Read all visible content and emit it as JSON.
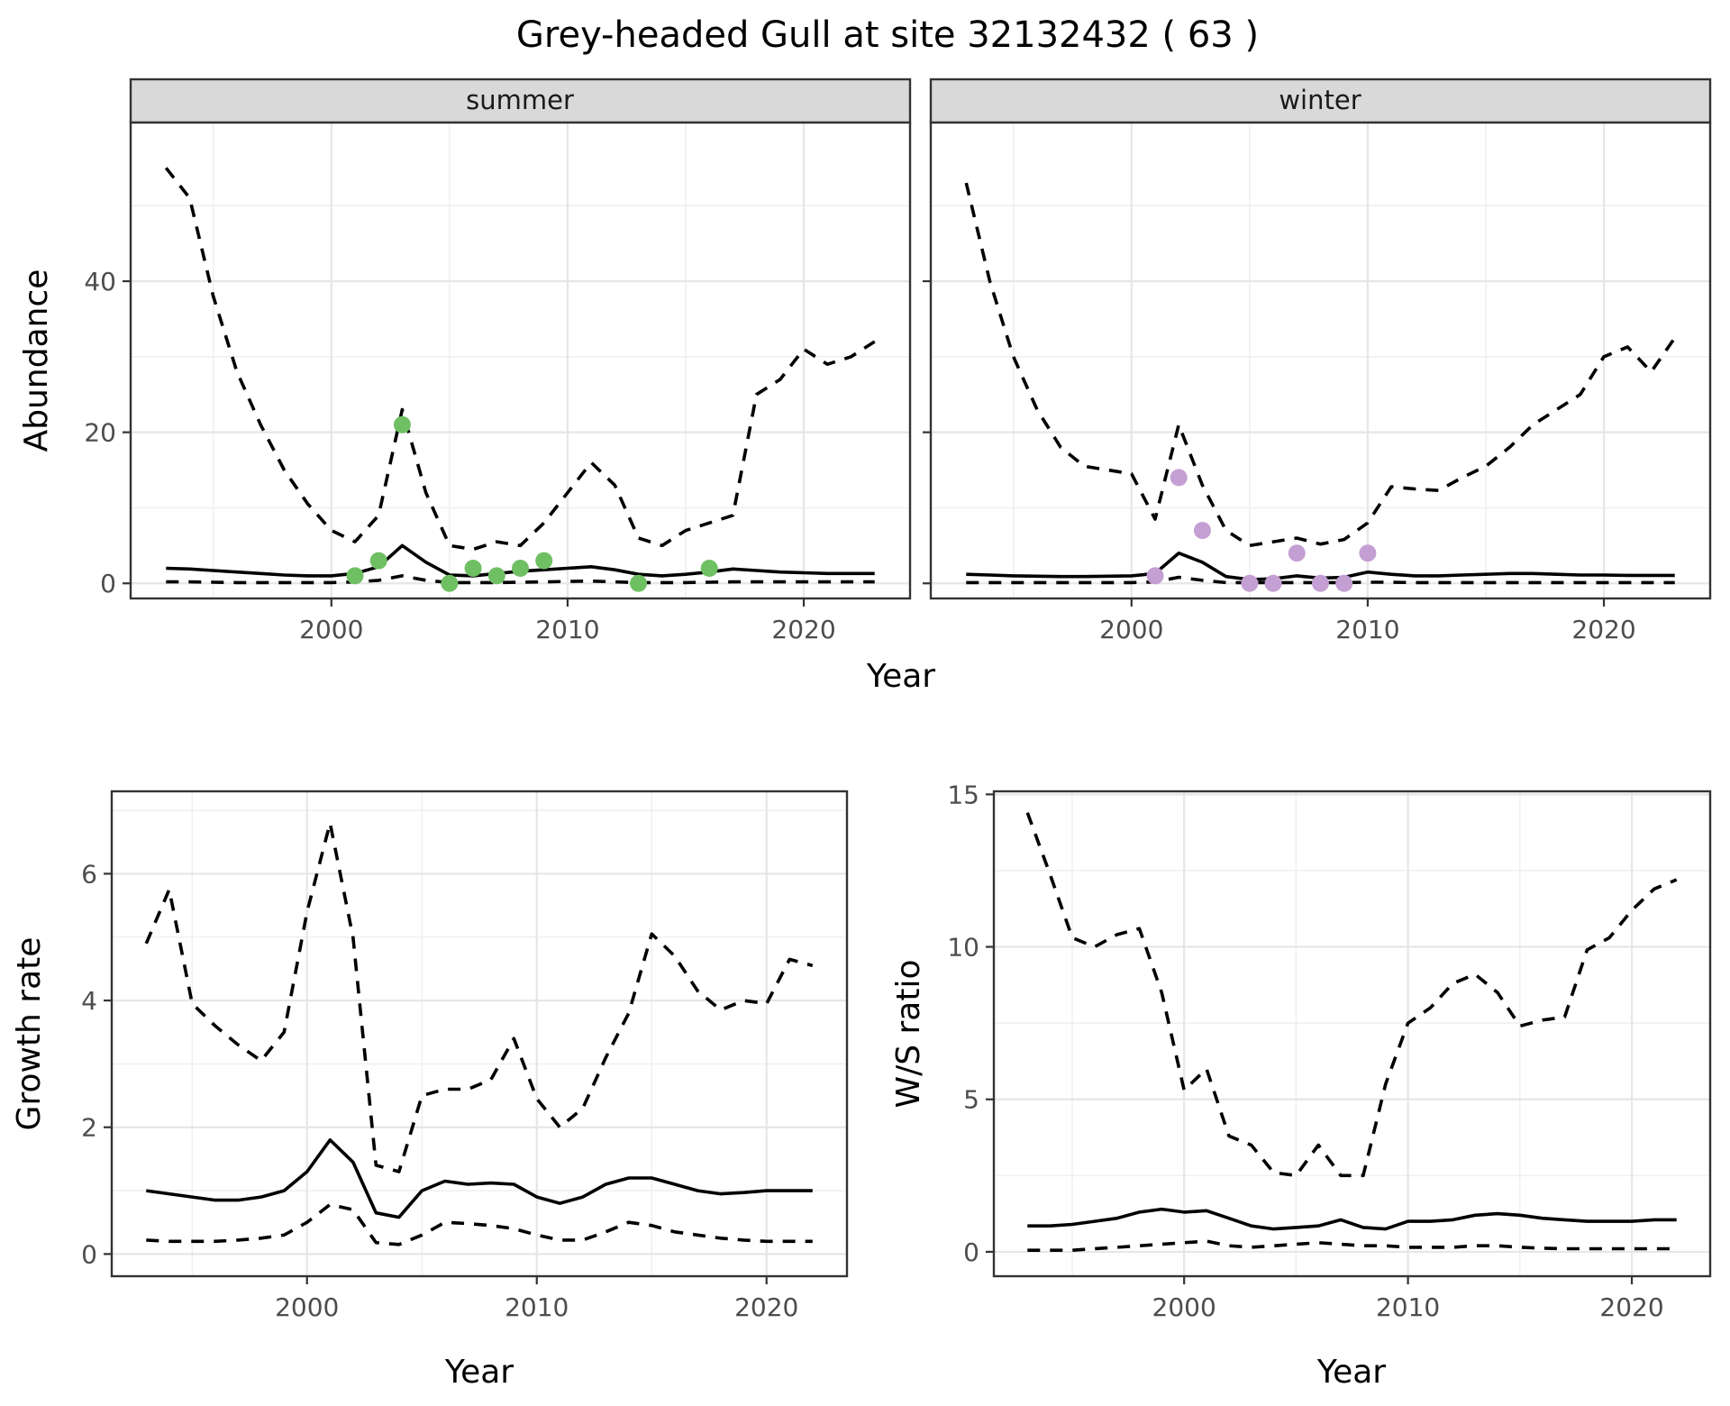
{
  "title": "Grey-headed Gull at site 32132432 ( 63 )",
  "colors": {
    "background": "#FFFFFF",
    "panel_background": "#FFFFFF",
    "strip_background": "#D9D9D9",
    "panel_border": "#333333",
    "grid_major": "#E6E6E6",
    "grid_minor": "#F0F0F0",
    "line": "#000000",
    "tick_text": "#4D4D4D",
    "summer_point": "#6FBF63",
    "winter_point": "#C49FD3"
  },
  "chart_data": [
    {
      "type": "line",
      "facet": "summer",
      "xlabel": "Year",
      "ylabel": "Abundance",
      "xlim": [
        1991.5,
        2024.5
      ],
      "ylim": [
        -2,
        61
      ],
      "xticks": [
        2000,
        2010,
        2020
      ],
      "xticks_minor": [
        1995,
        2005,
        2015
      ],
      "yticks": [
        0,
        20,
        40
      ],
      "yticks_minor": [
        10,
        30,
        50
      ],
      "grid": true,
      "legend": "none",
      "x": [
        1993,
        1994,
        1995,
        1996,
        1997,
        1998,
        1999,
        2000,
        2001,
        2002,
        2003,
        2004,
        2005,
        2006,
        2007,
        2008,
        2009,
        2010,
        2011,
        2012,
        2013,
        2014,
        2015,
        2016,
        2017,
        2018,
        2019,
        2020,
        2021,
        2022,
        2023
      ],
      "series": [
        {
          "name": "upper_ci",
          "style": "dashed",
          "values": [
            55,
            51,
            38,
            28,
            21,
            15,
            10.5,
            7,
            5.5,
            9,
            23,
            12,
            5,
            4.5,
            5.5,
            5,
            8,
            12,
            16,
            13,
            6,
            5,
            7,
            8,
            9,
            25,
            27,
            31,
            29,
            30,
            32
          ]
        },
        {
          "name": "estimate",
          "style": "solid",
          "values": [
            2,
            1.9,
            1.7,
            1.5,
            1.3,
            1.1,
            1,
            1,
            1.3,
            2.2,
            5,
            2.8,
            1.1,
            1,
            1.3,
            1.6,
            1.8,
            2,
            2.2,
            1.8,
            1.2,
            1,
            1.2,
            1.5,
            1.9,
            1.7,
            1.5,
            1.4,
            1.3,
            1.3,
            1.3
          ]
        },
        {
          "name": "lower_ci",
          "style": "dashed",
          "values": [
            0.2,
            0.2,
            0.15,
            0.1,
            0.1,
            0.1,
            0.1,
            0.1,
            0.2,
            0.4,
            1,
            0.4,
            0.1,
            0.1,
            0.1,
            0.15,
            0.2,
            0.25,
            0.3,
            0.2,
            0.1,
            0.1,
            0.1,
            0.15,
            0.2,
            0.2,
            0.2,
            0.2,
            0.2,
            0.2,
            0.2
          ]
        }
      ],
      "points": {
        "name": "summer observed counts",
        "color": "#6FBF63",
        "x": [
          2001,
          2002,
          2003,
          2005,
          2006,
          2007,
          2008,
          2009,
          2013,
          2016
        ],
        "y": [
          1,
          3,
          21,
          0,
          2,
          1,
          2,
          3,
          0,
          2
        ]
      }
    },
    {
      "type": "line",
      "facet": "winter",
      "xlabel": "Year",
      "ylabel": "Abundance",
      "xlim": [
        1991.5,
        2024.5
      ],
      "ylim": [
        -2,
        61
      ],
      "xticks": [
        2000,
        2010,
        2020
      ],
      "xticks_minor": [
        1995,
        2005,
        2015
      ],
      "yticks": [
        0,
        20,
        40
      ],
      "yticks_minor": [
        10,
        30,
        50
      ],
      "grid": true,
      "legend": "none",
      "x": [
        1993,
        1994,
        1995,
        1996,
        1997,
        1998,
        1999,
        2000,
        2001,
        2002,
        2003,
        2004,
        2005,
        2006,
        2007,
        2008,
        2009,
        2010,
        2011,
        2012,
        2013,
        2014,
        2015,
        2016,
        2017,
        2018,
        2019,
        2020,
        2021,
        2022,
        2023
      ],
      "series": [
        {
          "name": "upper_ci",
          "style": "dashed",
          "values": [
            53,
            40,
            30,
            23,
            18,
            15.5,
            15,
            14.5,
            8.5,
            21,
            13,
            7,
            5,
            5.5,
            6,
            5.2,
            5.8,
            8,
            12.8,
            12.5,
            12.3,
            14,
            15.5,
            18,
            21,
            23,
            25,
            30,
            31.3,
            28,
            32.5
          ]
        },
        {
          "name": "estimate",
          "style": "solid",
          "values": [
            1.2,
            1.1,
            1,
            0.95,
            0.9,
            0.9,
            0.95,
            1,
            1.3,
            4,
            2.8,
            0.9,
            0.5,
            0.6,
            1,
            0.7,
            0.8,
            1.5,
            1.2,
            1,
            1,
            1.1,
            1.2,
            1.3,
            1.3,
            1.2,
            1.1,
            1.1,
            1.05,
            1.05,
            1.05
          ]
        },
        {
          "name": "lower_ci",
          "style": "dashed",
          "values": [
            0.1,
            0.1,
            0.1,
            0.1,
            0.1,
            0.1,
            0.1,
            0.1,
            0.2,
            0.8,
            0.4,
            0.1,
            0.1,
            0.1,
            0.1,
            0.1,
            0.1,
            0.15,
            0.15,
            0.1,
            0.1,
            0.1,
            0.1,
            0.1,
            0.1,
            0.1,
            0.1,
            0.1,
            0.1,
            0.1,
            0.1
          ]
        }
      ],
      "points": {
        "name": "winter observed counts",
        "color": "#C49FD3",
        "x": [
          2001,
          2002,
          2003,
          2005,
          2006,
          2007,
          2008,
          2009,
          2010
        ],
        "y": [
          1,
          14,
          7,
          0,
          0,
          4,
          0,
          0,
          4
        ]
      }
    },
    {
      "type": "line",
      "facet": "",
      "xlabel": "Year",
      "ylabel": "Growth rate",
      "xlim": [
        1991.5,
        2023.5
      ],
      "ylim": [
        -0.35,
        7.3
      ],
      "xticks": [
        2000,
        2010,
        2020
      ],
      "xticks_minor": [
        1995,
        2005,
        2015
      ],
      "yticks": [
        0,
        2,
        4,
        6
      ],
      "yticks_minor": [
        1,
        3,
        5,
        7
      ],
      "grid": true,
      "legend": "none",
      "x": [
        1993,
        1994,
        1995,
        1996,
        1997,
        1998,
        1999,
        2000,
        2001,
        2002,
        2003,
        2004,
        2005,
        2006,
        2007,
        2008,
        2009,
        2010,
        2011,
        2012,
        2013,
        2014,
        2015,
        2016,
        2017,
        2018,
        2019,
        2020,
        2021,
        2022
      ],
      "series": [
        {
          "name": "upper_ci",
          "style": "dashed",
          "values": [
            4.9,
            5.75,
            3.95,
            3.6,
            3.3,
            3.05,
            3.5,
            5.4,
            6.8,
            5,
            1.4,
            1.3,
            2.5,
            2.6,
            2.6,
            2.75,
            3.4,
            2.45,
            2,
            2.3,
            3.1,
            3.8,
            5.05,
            4.7,
            4.15,
            3.85,
            4,
            3.95,
            4.65,
            4.55
          ]
        },
        {
          "name": "estimate",
          "style": "solid",
          "values": [
            1,
            0.95,
            0.9,
            0.85,
            0.85,
            0.9,
            1,
            1.3,
            1.8,
            1.45,
            0.65,
            0.58,
            1,
            1.15,
            1.1,
            1.12,
            1.1,
            0.9,
            0.8,
            0.9,
            1.1,
            1.2,
            1.2,
            1.1,
            1,
            0.95,
            0.97,
            1,
            1,
            1
          ]
        },
        {
          "name": "lower_ci",
          "style": "dashed",
          "values": [
            0.22,
            0.2,
            0.2,
            0.2,
            0.22,
            0.25,
            0.3,
            0.5,
            0.78,
            0.7,
            0.18,
            0.15,
            0.3,
            0.5,
            0.48,
            0.45,
            0.4,
            0.3,
            0.22,
            0.22,
            0.35,
            0.5,
            0.45,
            0.35,
            0.3,
            0.25,
            0.22,
            0.2,
            0.2,
            0.2
          ]
        }
      ]
    },
    {
      "type": "line",
      "facet": "",
      "xlabel": "Year",
      "ylabel": "W/S ratio",
      "xlim": [
        1991.5,
        2023.5
      ],
      "ylim": [
        -0.8,
        15.1
      ],
      "xticks": [
        2000,
        2010,
        2020
      ],
      "xticks_minor": [
        1995,
        2005,
        2015
      ],
      "yticks": [
        0,
        5,
        10,
        15
      ],
      "yticks_minor": [
        2.5,
        7.5,
        12.5
      ],
      "grid": true,
      "legend": "none",
      "x": [
        1993,
        1994,
        1995,
        1996,
        1997,
        1998,
        1999,
        2000,
        2001,
        2002,
        2003,
        2004,
        2005,
        2006,
        2007,
        2008,
        2009,
        2010,
        2011,
        2012,
        2013,
        2014,
        2015,
        2016,
        2017,
        2018,
        2019,
        2020,
        2021,
        2022
      ],
      "series": [
        {
          "name": "upper_ci",
          "style": "dashed",
          "values": [
            14.4,
            12.4,
            10.3,
            10,
            10.4,
            10.6,
            8.5,
            5.3,
            6,
            3.8,
            3.5,
            2.6,
            2.5,
            3.5,
            2.5,
            2.5,
            5.5,
            7.5,
            8,
            8.8,
            9.1,
            8.5,
            7.4,
            7.6,
            7.7,
            9.9,
            10.3,
            11.2,
            11.9,
            12.2
          ]
        },
        {
          "name": "estimate",
          "style": "solid",
          "values": [
            0.85,
            0.85,
            0.9,
            1,
            1.1,
            1.3,
            1.4,
            1.3,
            1.35,
            1.1,
            0.85,
            0.75,
            0.8,
            0.85,
            1.05,
            0.8,
            0.75,
            1,
            1,
            1.05,
            1.2,
            1.25,
            1.2,
            1.1,
            1.05,
            1,
            1,
            1,
            1.05,
            1.05
          ]
        },
        {
          "name": "lower_ci",
          "style": "dashed",
          "values": [
            0.05,
            0.05,
            0.05,
            0.1,
            0.15,
            0.2,
            0.25,
            0.3,
            0.35,
            0.2,
            0.15,
            0.2,
            0.25,
            0.3,
            0.25,
            0.2,
            0.2,
            0.15,
            0.15,
            0.15,
            0.2,
            0.2,
            0.15,
            0.12,
            0.1,
            0.1,
            0.1,
            0.1,
            0.1,
            0.1
          ]
        }
      ]
    }
  ]
}
